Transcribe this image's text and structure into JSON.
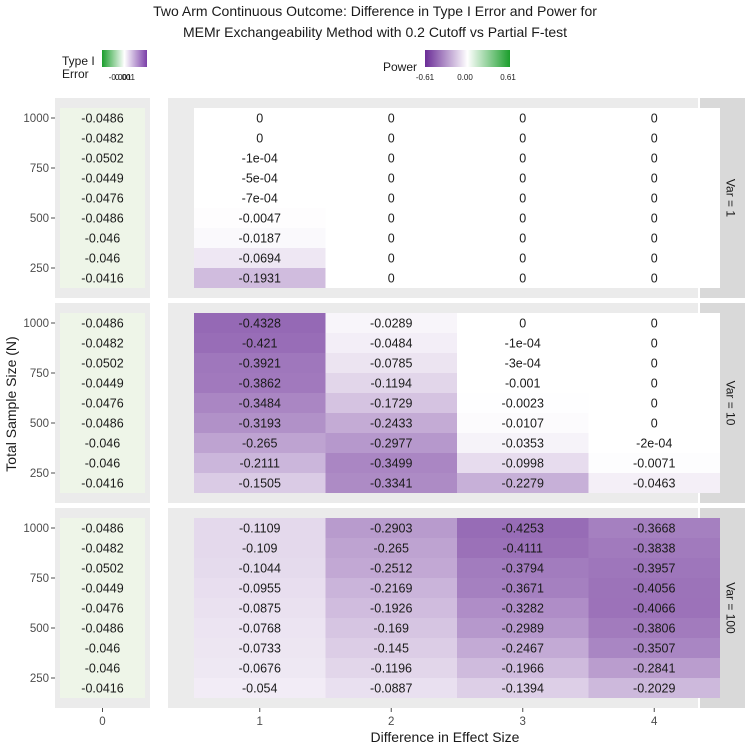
{
  "chart_data": {
    "type": "heatmap",
    "title_lines": [
      "Two Arm Continuous Outcome: Difference in Type I Error and Power for",
      "MEMr Exchangeability Method with 0.2 Cutoff vs Partial F-test"
    ],
    "xlabel": "Difference in Effect Size",
    "ylabel": "Total Sample Size (N)",
    "legend_type1": {
      "title_lines": [
        "Type I",
        "Error"
      ],
      "tick_labels": [
        "-0.001",
        "0.001"
      ],
      "low_color": "#1b9e2c",
      "high_color": "#7b3fa8"
    },
    "legend_power": {
      "title": "Power",
      "tick_labels": [
        "-0.61",
        "0.00",
        "0.61"
      ],
      "ticks": [
        -0.61,
        0,
        0.61
      ],
      "low_color": "#6a2c96",
      "mid_color": "#ffffff",
      "high_color": "#1b9e2c"
    },
    "y_tick_labels": [
      "1000",
      "750",
      "500",
      "250"
    ],
    "y_ticks": [
      1000,
      750,
      500,
      250
    ],
    "y_values": [
      1000,
      900,
      800,
      700,
      600,
      500,
      400,
      300,
      200
    ],
    "x_categories_type1": [
      "0"
    ],
    "x_categories_power": [
      "1",
      "2",
      "3",
      "4"
    ],
    "panels": [
      {
        "strip": "Var = 1",
        "type1": [
          "-0.0486",
          "-0.0482",
          "-0.0502",
          "-0.0449",
          "-0.0476",
          "-0.0486",
          "-0.046",
          "-0.046",
          "-0.0416"
        ],
        "power": [
          [
            "0",
            "0",
            "0",
            "0"
          ],
          [
            "0",
            "0",
            "0",
            "0"
          ],
          [
            "-1e-04",
            "0",
            "0",
            "0"
          ],
          [
            "-5e-04",
            "0",
            "0",
            "0"
          ],
          [
            "-7e-04",
            "0",
            "0",
            "0"
          ],
          [
            "-0.0047",
            "0",
            "0",
            "0"
          ],
          [
            "-0.0187",
            "0",
            "0",
            "0"
          ],
          [
            "-0.0694",
            "0",
            "0",
            "0"
          ],
          [
            "-0.1931",
            "0",
            "0",
            "0"
          ]
        ]
      },
      {
        "strip": "Var = 10",
        "type1": [
          "-0.0486",
          "-0.0482",
          "-0.0502",
          "-0.0449",
          "-0.0476",
          "-0.0486",
          "-0.046",
          "-0.046",
          "-0.0416"
        ],
        "power": [
          [
            "-0.4328",
            "-0.0289",
            "0",
            "0"
          ],
          [
            "-0.421",
            "-0.0484",
            "-1e-04",
            "0"
          ],
          [
            "-0.3921",
            "-0.0785",
            "-3e-04",
            "0"
          ],
          [
            "-0.3862",
            "-0.1194",
            "-0.001",
            "0"
          ],
          [
            "-0.3484",
            "-0.1729",
            "-0.0023",
            "0"
          ],
          [
            "-0.3193",
            "-0.2433",
            "-0.0107",
            "0"
          ],
          [
            "-0.265",
            "-0.2977",
            "-0.0353",
            "-2e-04"
          ],
          [
            "-0.2111",
            "-0.3499",
            "-0.0998",
            "-0.0071"
          ],
          [
            "-0.1505",
            "-0.3341",
            "-0.2279",
            "-0.0463"
          ]
        ]
      },
      {
        "strip": "Var = 100",
        "type1": [
          "-0.0486",
          "-0.0482",
          "-0.0502",
          "-0.0449",
          "-0.0476",
          "-0.0486",
          "-0.046",
          "-0.046",
          "-0.0416"
        ],
        "power": [
          [
            "-0.1109",
            "-0.2903",
            "-0.4253",
            "-0.3668"
          ],
          [
            "-0.109",
            "-0.265",
            "-0.4111",
            "-0.3838"
          ],
          [
            "-0.1044",
            "-0.2512",
            "-0.3794",
            "-0.3957"
          ],
          [
            "-0.0955",
            "-0.2169",
            "-0.3671",
            "-0.4056"
          ],
          [
            "-0.0875",
            "-0.1926",
            "-0.3282",
            "-0.4066"
          ],
          [
            "-0.0768",
            "-0.169",
            "-0.2989",
            "-0.3806"
          ],
          [
            "-0.0733",
            "-0.145",
            "-0.2467",
            "-0.3507"
          ],
          [
            "-0.0676",
            "-0.1196",
            "-0.1966",
            "-0.2841"
          ],
          [
            "-0.054",
            "-0.0887",
            "-0.1394",
            "-0.2029"
          ]
        ]
      }
    ],
    "type1_fill_color": "#eef5e8",
    "panel_background": "#ebebeb",
    "strip_background": "#d9d9d9"
  }
}
